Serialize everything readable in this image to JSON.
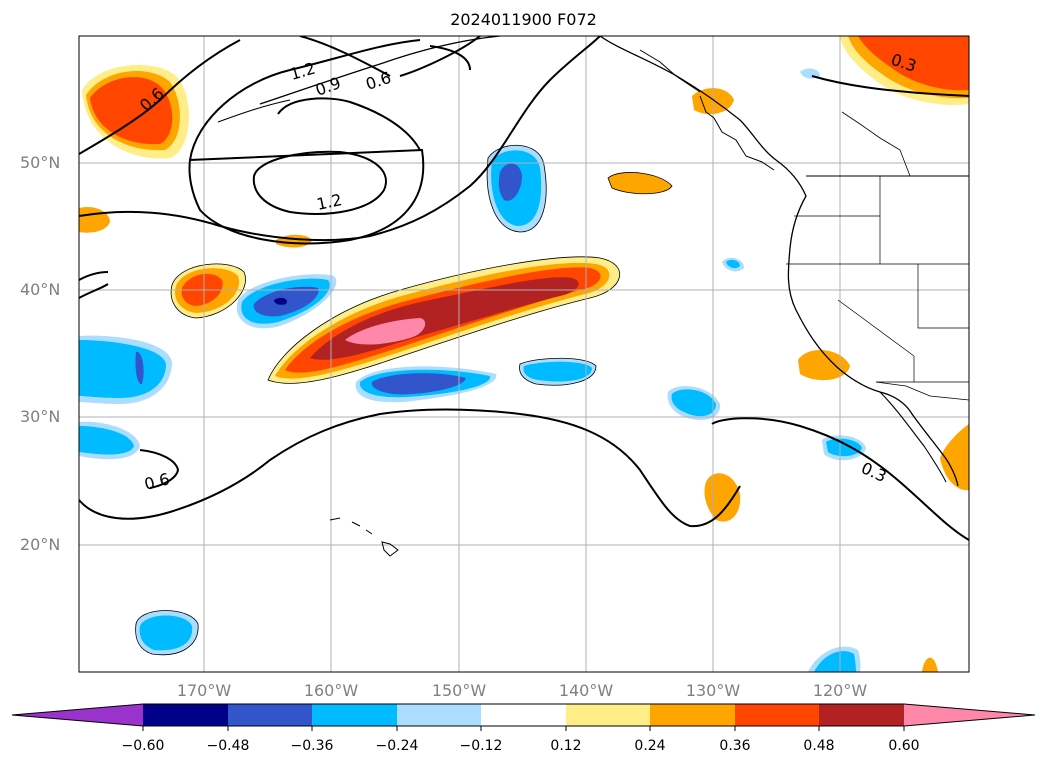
{
  "title": "2024011900 F072",
  "lat_labels": [
    "50°N",
    "40°N",
    "30°N",
    "20°N"
  ],
  "lon_labels": [
    "170°W",
    "160°W",
    "150°W",
    "140°W",
    "130°W",
    "120°W"
  ],
  "contour_labels": [
    "1.2",
    "0.9",
    "0.6",
    "0.6",
    "1.2",
    "0.3",
    "0.3",
    "0.6"
  ],
  "colorbar": {
    "ticks": [
      "−0.60",
      "−0.48",
      "−0.36",
      "−0.24",
      "−0.12",
      "0.12",
      "0.24",
      "0.36",
      "0.48",
      "0.60"
    ],
    "colors": [
      "#9933cc",
      "#000088",
      "#3355cc",
      "#00bbff",
      "#aaddff",
      "#ffffff",
      "#ffee88",
      "#ffa500",
      "#ff4500",
      "#b22222",
      "#ff88aa"
    ]
  },
  "colors": {
    "pos_light": "#ffee88",
    "pos_orange": "#ffa500",
    "pos_red": "#ff4500",
    "pos_darkred": "#b22222",
    "pos_pink": "#ff88aa",
    "neg_pale": "#aaddff",
    "neg_cyan": "#00bbff",
    "neg_blue": "#3355cc",
    "neg_navy": "#000088"
  }
}
